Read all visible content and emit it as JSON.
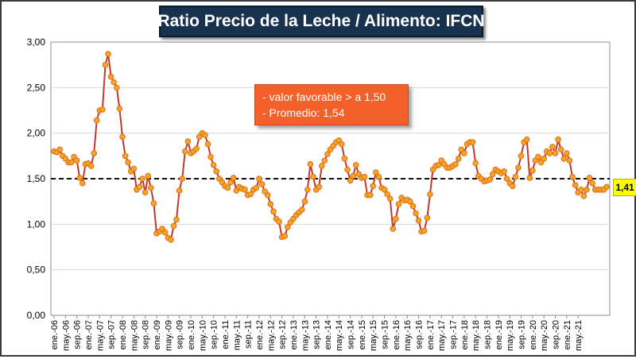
{
  "chart_data": {
    "type": "line",
    "title": "Ratio Precio de la Leche / Alimento: IFCN",
    "ylim": [
      0,
      3
    ],
    "yticks": [
      "0,00",
      "0,50",
      "1,00",
      "1,50",
      "2,00",
      "2,50",
      "3,00"
    ],
    "grid": "horizontal",
    "reference_line": 1.5,
    "annotations": [
      "- valor favorable > a 1,50",
      "- Promedio: 1,54"
    ],
    "last_value_label": "1,41",
    "xtick_labels": [
      "ene.-06",
      "may.-06",
      "sep.-06",
      "ene.-07",
      "may.-07",
      "sep.-07",
      "ene.-08",
      "may.-08",
      "sep.-08",
      "ene.-09",
      "may.-09",
      "sep.-09",
      "ene.-10",
      "may.-10",
      "sep.-10",
      "ene.-11",
      "may.-11",
      "sep.-11",
      "ene.-12",
      "may.-12",
      "sep.-12",
      "ene.-13",
      "may.-13",
      "sep.-13",
      "ene.-14",
      "may.-14",
      "sep.-14",
      "ene.-15",
      "may.-15",
      "sep.-15",
      "ene.-16",
      "may.-16",
      "sep.-16",
      "ene.-17",
      "may.-17",
      "sep.-17",
      "ene.-18",
      "may.-18",
      "sep.-18",
      "ene.-19",
      "may.-19",
      "sep.-19",
      "ene.-20",
      "may.-20",
      "sep.-20",
      "ene.-21",
      "may.-21"
    ],
    "series": [
      {
        "values": [
          1.8,
          1.79,
          1.82,
          1.75,
          1.72,
          1.68,
          1.68,
          1.74,
          1.7,
          1.51,
          1.45,
          1.66,
          1.67,
          1.64,
          1.78,
          2.14,
          2.25,
          2.26,
          2.75,
          2.87,
          2.62,
          2.56,
          2.5,
          2.27,
          1.96,
          1.75,
          1.68,
          1.58,
          1.61,
          1.38,
          1.41,
          1.5,
          1.35,
          1.53,
          1.4,
          1.23,
          0.9,
          0.92,
          0.95,
          0.91,
          0.85,
          0.83,
          0.98,
          1.05,
          1.37,
          1.5,
          1.8,
          1.91,
          1.78,
          1.8,
          1.83,
          1.96,
          2.0,
          1.98,
          1.88,
          1.74,
          1.65,
          1.58,
          1.5,
          1.46,
          1.42,
          1.4,
          1.46,
          1.51,
          1.37,
          1.41,
          1.39,
          1.38,
          1.32,
          1.33,
          1.38,
          1.4,
          1.5,
          1.44,
          1.36,
          1.32,
          1.22,
          1.14,
          1.06,
          1.03,
          0.86,
          0.87,
          0.97,
          1.02,
          1.06,
          1.1,
          1.13,
          1.16,
          1.25,
          1.38,
          1.66,
          1.52,
          1.38,
          1.41,
          1.64,
          1.7,
          1.77,
          1.82,
          1.86,
          1.9,
          1.92,
          1.88,
          1.72,
          1.6,
          1.48,
          1.53,
          1.65,
          1.55,
          1.51,
          1.52,
          1.32,
          1.32,
          1.42,
          1.57,
          1.52,
          1.4,
          1.38,
          1.33,
          1.28,
          0.95,
          1.06,
          1.22,
          1.29,
          1.26,
          1.27,
          1.25,
          1.2,
          1.12,
          1.04,
          0.92,
          0.93,
          1.07,
          1.33,
          1.6,
          1.64,
          1.65,
          1.7,
          1.66,
          1.62,
          1.62,
          1.64,
          1.66,
          1.72,
          1.82,
          1.78,
          1.88,
          1.9,
          1.9,
          1.67,
          1.53,
          1.5,
          1.47,
          1.48,
          1.49,
          1.55,
          1.6,
          1.58,
          1.56,
          1.58,
          1.5,
          1.45,
          1.42,
          1.52,
          1.62,
          1.75,
          1.9,
          1.93,
          1.51,
          1.59,
          1.7,
          1.74,
          1.68,
          1.72,
          1.8,
          1.78,
          1.85,
          1.78,
          1.93,
          1.82,
          1.72,
          1.78,
          1.7,
          1.52,
          1.43,
          1.35,
          1.38,
          1.31,
          1.38,
          1.51,
          1.45,
          1.38,
          1.38,
          1.38,
          1.38,
          1.41
        ]
      }
    ]
  }
}
